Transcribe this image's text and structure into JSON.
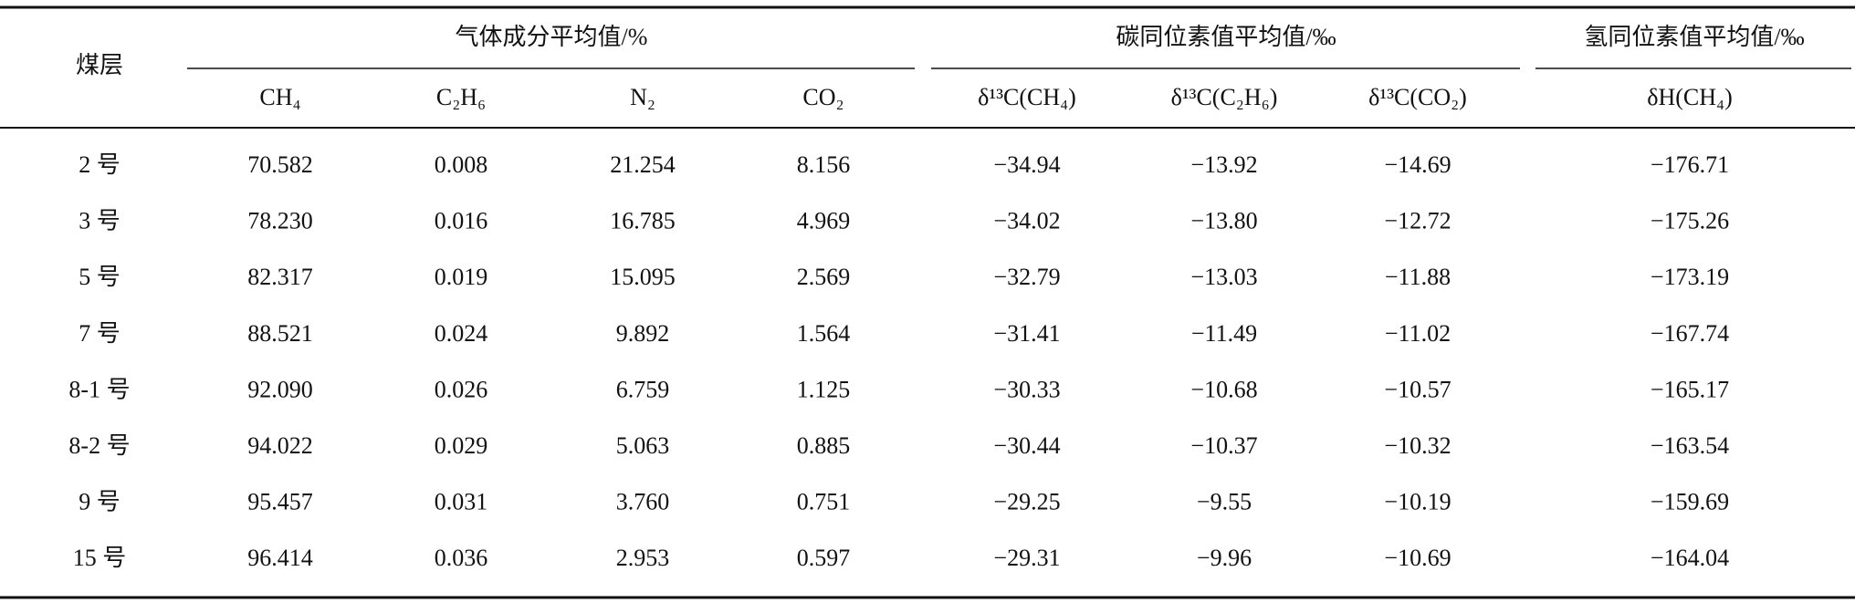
{
  "table": {
    "row_header": "煤层",
    "groups": [
      {
        "title": "气体成分平均值/%",
        "columns": [
          "CH₄",
          "C₂H₆",
          "N₂",
          "CO₂"
        ]
      },
      {
        "title": "碳同位素值平均值/‰",
        "columns": [
          "δ¹³C(CH₄)",
          "δ¹³C(C₂H₆)",
          "δ¹³C(CO₂)"
        ]
      },
      {
        "title": "氢同位素值平均值/‰",
        "columns": [
          "δH(CH₄)"
        ]
      }
    ],
    "rows": [
      {
        "label": "2 号",
        "values": [
          "70.582",
          "0.008",
          "21.254",
          "8.156",
          "−34.94",
          "−13.92",
          "−14.69",
          "−176.71"
        ]
      },
      {
        "label": "3 号",
        "values": [
          "78.230",
          "0.016",
          "16.785",
          "4.969",
          "−34.02",
          "−13.80",
          "−12.72",
          "−175.26"
        ]
      },
      {
        "label": "5 号",
        "values": [
          "82.317",
          "0.019",
          "15.095",
          "2.569",
          "−32.79",
          "−13.03",
          "−11.88",
          "−173.19"
        ]
      },
      {
        "label": "7 号",
        "values": [
          "88.521",
          "0.024",
          "9.892",
          "1.564",
          "−31.41",
          "−11.49",
          "−11.02",
          "−167.74"
        ]
      },
      {
        "label": "8-1 号",
        "values": [
          "92.090",
          "0.026",
          "6.759",
          "1.125",
          "−30.33",
          "−10.68",
          "−10.57",
          "−165.17"
        ]
      },
      {
        "label": "8-2 号",
        "values": [
          "94.022",
          "0.029",
          "5.063",
          "0.885",
          "−30.44",
          "−10.37",
          "−10.32",
          "−163.54"
        ]
      },
      {
        "label": "9 号",
        "values": [
          "95.457",
          "0.031",
          "3.760",
          "0.751",
          "−29.25",
          "−9.55",
          "−10.19",
          "−159.69"
        ]
      },
      {
        "label": "15 号",
        "values": [
          "96.414",
          "0.036",
          "2.953",
          "0.597",
          "−29.31",
          "−9.96",
          "−10.69",
          "−164.04"
        ]
      }
    ]
  }
}
